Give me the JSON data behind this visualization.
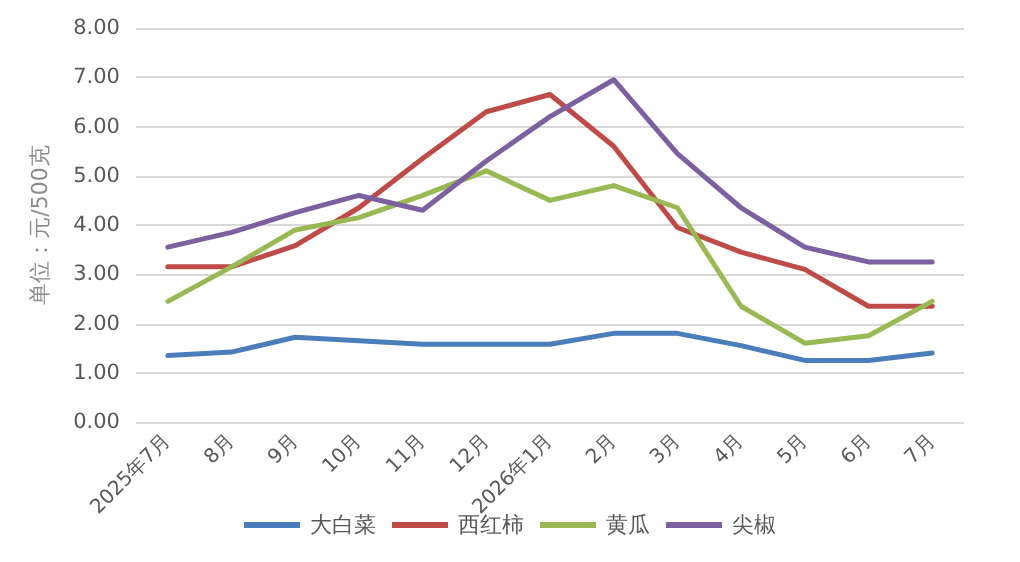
{
  "chart_data": {
    "type": "line",
    "ylabel": "单位：元/500克",
    "categories": [
      "2025年7月",
      "8月",
      "9月",
      "10月",
      "11月",
      "12月",
      "2026年1月",
      "2月",
      "3月",
      "4月",
      "5月",
      "6月",
      "7月"
    ],
    "series": [
      {
        "name": "大白菜",
        "color": "#4a7ebb",
        "values": [
          1.35,
          1.42,
          1.72,
          1.65,
          1.58,
          1.58,
          1.58,
          1.8,
          1.8,
          1.55,
          1.25,
          1.25,
          1.4
        ]
      },
      {
        "name": "西红柿",
        "color": "#be4b48",
        "values": [
          3.15,
          3.15,
          3.58,
          4.35,
          5.35,
          6.3,
          6.65,
          5.6,
          3.95,
          3.45,
          3.1,
          2.35,
          2.35
        ]
      },
      {
        "name": "黄瓜",
        "color": "#98b954",
        "values": [
          2.45,
          3.15,
          3.9,
          4.15,
          4.6,
          5.1,
          4.5,
          4.8,
          4.35,
          2.35,
          1.6,
          1.75,
          2.45
        ]
      },
      {
        "name": "尖椒",
        "color": "#7d60a0",
        "values": [
          3.55,
          3.85,
          4.25,
          4.6,
          4.3,
          5.3,
          6.2,
          6.95,
          5.45,
          4.35,
          3.55,
          3.25,
          3.25
        ]
      }
    ],
    "ylim": [
      0,
      8
    ],
    "yticks": [
      {
        "value": 0,
        "label": "0.00"
      },
      {
        "value": 1,
        "label": "1.00"
      },
      {
        "value": 2,
        "label": "2.00"
      },
      {
        "value": 3,
        "label": "3.00"
      },
      {
        "value": 4,
        "label": "4.00"
      },
      {
        "value": 5,
        "label": "5.00"
      },
      {
        "value": 6,
        "label": "6.00"
      },
      {
        "value": 7,
        "label": "7.00"
      },
      {
        "value": 8,
        "label": "8.00"
      }
    ],
    "grid": "y",
    "legend": "bottom",
    "marker": "none",
    "line_style": "solid"
  }
}
